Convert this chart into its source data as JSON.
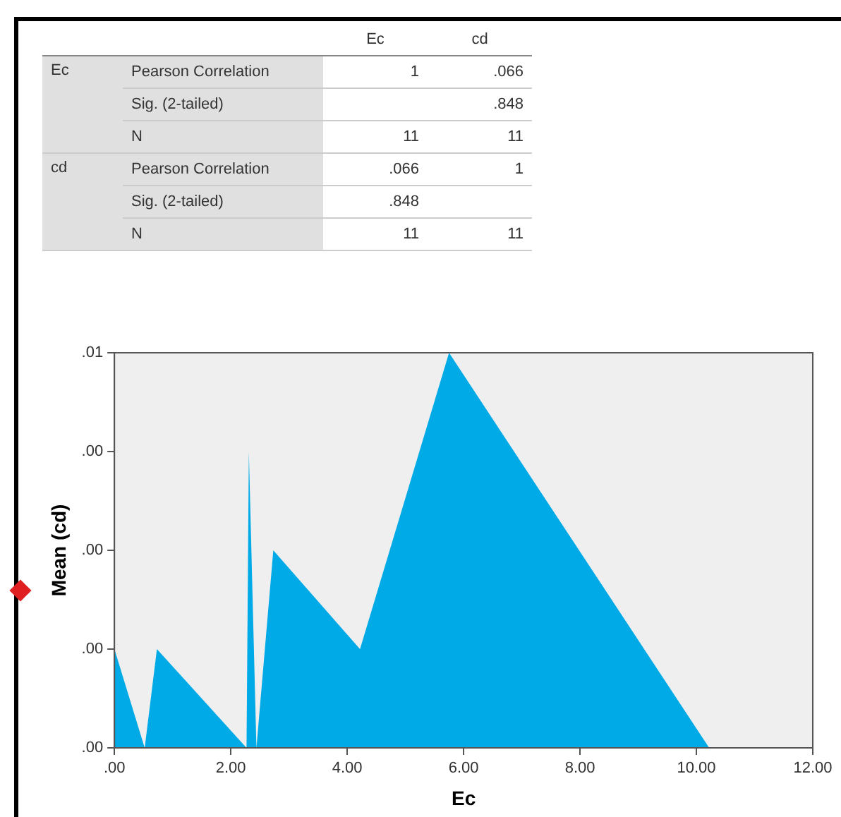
{
  "chart_data": [
    {
      "type": "other",
      "cell_labels": [
        [
          null,
          null,
          "Ec",
          "cd"
        ],
        [
          "Ec",
          "Pearson Correlation",
          "1",
          ".066"
        ],
        [
          null,
          "Sig. (2-tailed)",
          null,
          ".848"
        ],
        [
          null,
          "N",
          "11",
          "11"
        ],
        [
          "cd",
          "Pearson Correlation",
          ".066",
          "1"
        ],
        [
          null,
          "Sig. (2-tailed)",
          ".848",
          null
        ],
        [
          null,
          "N",
          "11",
          "11"
        ]
      ]
    },
    {
      "type": "area",
      "xlabel": "Ec",
      "ylabel": "Mean (cd)",
      "color": "#00aae7",
      "grid": false,
      "x": [
        0,
        0.52,
        0.73,
        2.27,
        2.31,
        2.44,
        2.73,
        4.22,
        5.75,
        10.22
      ],
      "values": [
        0.0015,
        0,
        0.0015,
        0,
        0.0045,
        0,
        0.003,
        0.0015,
        0.006,
        0
      ],
      "xlim": [
        0,
        12
      ],
      "xticks": [
        {
          "value": 0,
          "label": ".00"
        },
        {
          "value": 2,
          "label": "2.00"
        },
        {
          "value": 4,
          "label": "4.00"
        },
        {
          "value": 6,
          "label": "6.00"
        },
        {
          "value": 8,
          "label": "8.00"
        },
        {
          "value": 10,
          "label": "10.00"
        },
        {
          "value": 12,
          "label": "12.00"
        }
      ],
      "ylim": [
        0,
        0.006
      ],
      "yticks": [
        {
          "value": 0,
          "label": ".00"
        },
        {
          "value": 0.0015,
          "label": ".00"
        },
        {
          "value": 0.003,
          "label": ".00"
        },
        {
          "value": 0.0045,
          "label": ".00"
        },
        {
          "value": 0.006,
          "label": ".01"
        }
      ]
    }
  ]
}
